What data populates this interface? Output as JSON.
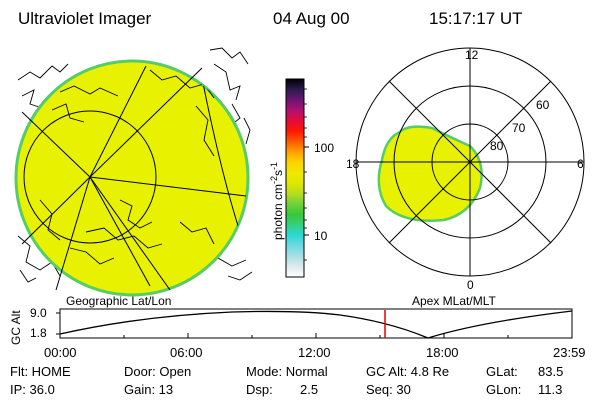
{
  "header": {
    "title": "Ultraviolet Imager",
    "date": "04 Aug 00",
    "time": "15:17:17 UT"
  },
  "colorbar": {
    "label": "photon cm",
    "label_sup": "-2",
    "label_mid": "s",
    "label_sup2": "-1",
    "tick_100": "100",
    "tick_10": "10",
    "stops": [
      "#ffffff",
      "#dfe9ee",
      "#a9dfe5",
      "#6fd9e2",
      "#2dd8d8",
      "#35d07e",
      "#38c83a",
      "#6ed13a",
      "#b6dd22",
      "#dfe600",
      "#f1e900",
      "#fbd400",
      "#ff9f00",
      "#ff5a00",
      "#ff1700",
      "#e60a3a",
      "#b0116f",
      "#6b1570",
      "#2b1b51",
      "#000000"
    ]
  },
  "geo_panel": {
    "caption": "Geographic Lat/Lon",
    "fill_color": "#e8f200",
    "edge_color": "#55cc66"
  },
  "polar_panel": {
    "caption": "Apex MLat/MLT",
    "labels": {
      "mlt_12": "12",
      "mlt_18": "18",
      "mlt_6": "6",
      "mlt_0": "0",
      "lat_60": "60",
      "lat_70": "70",
      "lat_80": "80"
    },
    "fill_color": "#e8f200",
    "edge_color": "#55cc66"
  },
  "altitude_strip": {
    "axis_title": "GC Alt",
    "tick_high": "9.0",
    "tick_low": "1.8",
    "time_ticks": [
      "00:00",
      "06:00",
      "12:00",
      "18:00",
      "23:59"
    ],
    "current_marker_color": "#dd0000"
  },
  "status": {
    "flt": "Flt: HOME",
    "ip": "IP: 36.0",
    "door": "Door: Open",
    "gain": "Gain: 13",
    "mode": "Mode: Normal",
    "dsp_label": "Dsp:",
    "dsp_value": "2.5",
    "gc_alt": "GC Alt: 4.8 Re",
    "seq": "Seq: 30",
    "glat_label": "GLat:",
    "glat_value": "83.5",
    "glon_label": "GLon:",
    "glon_value": "11.3"
  }
}
